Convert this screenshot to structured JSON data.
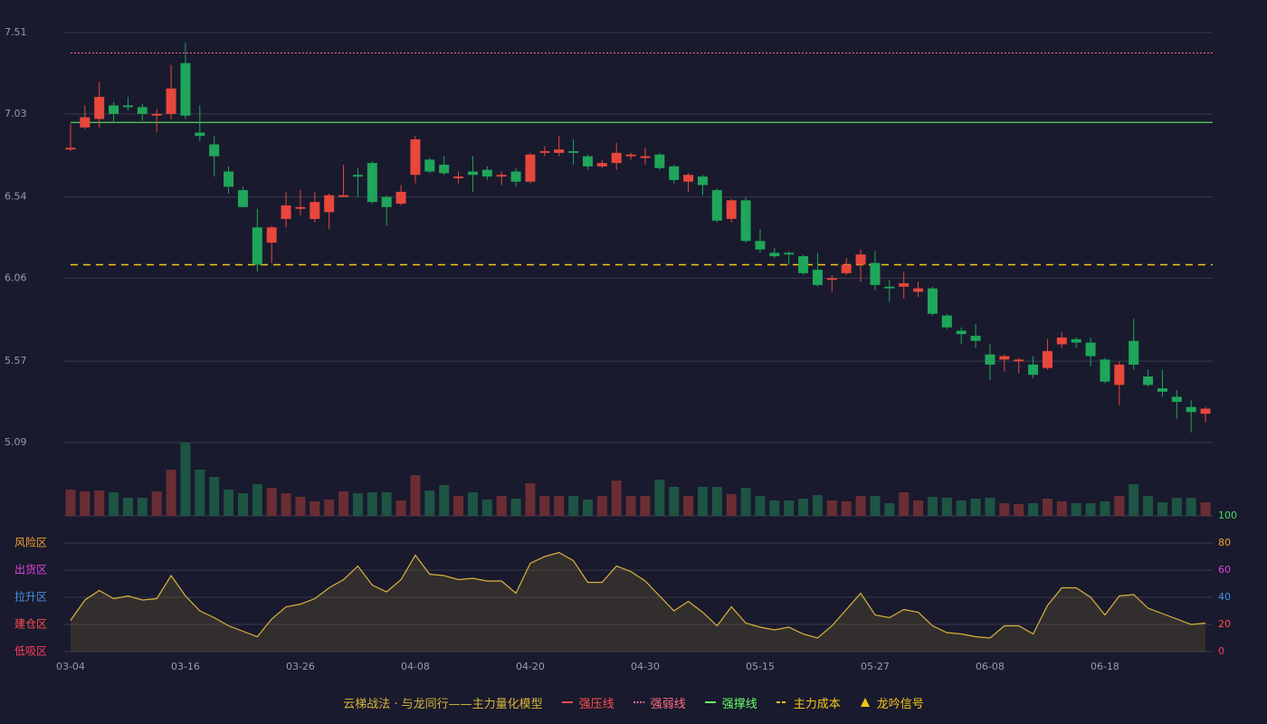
{
  "chart_data": {
    "type": "candlestick",
    "categories": [
      "03-04",
      null,
      null,
      null,
      null,
      null,
      null,
      null,
      "03-16",
      null,
      null,
      null,
      null,
      null,
      null,
      null,
      "03-26",
      null,
      null,
      null,
      null,
      null,
      null,
      null,
      "04-08",
      null,
      null,
      null,
      null,
      null,
      null,
      null,
      "04-20",
      null,
      null,
      null,
      null,
      null,
      null,
      null,
      "04-30",
      null,
      null,
      null,
      null,
      null,
      null,
      null,
      "05-15",
      null,
      null,
      null,
      null,
      null,
      null,
      null,
      "05-27",
      null,
      null,
      null,
      null,
      null,
      null,
      null,
      "06-08",
      null,
      null,
      null,
      null,
      null,
      null,
      null,
      "06-18",
      null,
      null,
      null,
      null,
      null,
      null,
      null
    ],
    "open": [
      6.82,
      6.95,
      7.0,
      7.08,
      7.08,
      7.07,
      7.02,
      7.03,
      7.33,
      6.92,
      6.85,
      6.69,
      6.58,
      6.36,
      6.27,
      6.41,
      6.47,
      6.41,
      6.45,
      6.54,
      6.67,
      6.74,
      6.54,
      6.5,
      6.67,
      6.76,
      6.73,
      6.65,
      6.69,
      6.7,
      6.66,
      6.69,
      6.63,
      6.8,
      6.8,
      6.81,
      6.78,
      6.72,
      6.74,
      6.78,
      6.77,
      6.79,
      6.72,
      6.63,
      6.66,
      6.58,
      6.41,
      6.52,
      6.28,
      6.21,
      6.21,
      6.19,
      6.11,
      6.05,
      6.09,
      6.14,
      6.15,
      6.01,
      6.01,
      5.98,
      6.0,
      5.84,
      5.75,
      5.72,
      5.61,
      5.58,
      5.57,
      5.55,
      5.53,
      5.67,
      5.7,
      5.68,
      5.58,
      5.43,
      5.69,
      5.48,
      5.41,
      5.36,
      5.3,
      5.26
    ],
    "high": [
      6.97,
      7.08,
      7.22,
      7.1,
      7.13,
      7.09,
      7.06,
      7.32,
      7.45,
      7.08,
      6.9,
      6.72,
      6.6,
      6.47,
      6.37,
      6.57,
      6.58,
      6.57,
      6.56,
      6.73,
      6.71,
      6.75,
      6.55,
      6.61,
      6.9,
      6.77,
      6.78,
      6.69,
      6.78,
      6.72,
      6.69,
      6.71,
      6.8,
      6.84,
      6.9,
      6.88,
      6.79,
      6.76,
      6.86,
      6.8,
      6.83,
      6.8,
      6.73,
      6.68,
      6.67,
      6.59,
      6.53,
      6.54,
      6.35,
      6.24,
      6.22,
      6.2,
      6.21,
      6.08,
      6.18,
      6.23,
      6.22,
      6.05,
      6.1,
      6.04,
      6.01,
      5.85,
      5.77,
      5.79,
      5.67,
      5.61,
      5.59,
      5.6,
      5.7,
      5.74,
      5.71,
      5.71,
      5.59,
      5.57,
      5.82,
      5.52,
      5.52,
      5.4,
      5.34,
      5.3
    ],
    "low": [
      6.81,
      6.94,
      6.95,
      6.98,
      7.05,
      6.99,
      6.92,
      7.0,
      7.0,
      6.87,
      6.66,
      6.56,
      6.48,
      6.1,
      6.15,
      6.36,
      6.43,
      6.39,
      6.35,
      6.54,
      6.54,
      6.5,
      6.37,
      6.49,
      6.62,
      6.68,
      6.67,
      6.62,
      6.57,
      6.64,
      6.61,
      6.6,
      6.62,
      6.78,
      6.78,
      6.73,
      6.7,
      6.71,
      6.7,
      6.76,
      6.73,
      6.7,
      6.62,
      6.57,
      6.55,
      6.39,
      6.39,
      6.27,
      6.21,
      6.18,
      6.14,
      6.08,
      6.01,
      5.98,
      6.08,
      6.04,
      5.99,
      5.92,
      5.94,
      5.95,
      5.84,
      5.76,
      5.67,
      5.65,
      5.46,
      5.51,
      5.5,
      5.47,
      5.52,
      5.65,
      5.65,
      5.54,
      5.44,
      5.31,
      5.52,
      5.42,
      5.36,
      5.23,
      5.15,
      5.21
    ],
    "close": [
      6.83,
      7.01,
      7.13,
      7.03,
      7.07,
      7.03,
      7.03,
      7.18,
      7.02,
      6.9,
      6.78,
      6.6,
      6.48,
      6.14,
      6.36,
      6.49,
      6.48,
      6.51,
      6.55,
      6.55,
      6.66,
      6.51,
      6.48,
      6.57,
      6.88,
      6.69,
      6.68,
      6.66,
      6.67,
      6.66,
      6.67,
      6.63,
      6.79,
      6.81,
      6.82,
      6.8,
      6.72,
      6.74,
      6.8,
      6.79,
      6.78,
      6.71,
      6.64,
      6.67,
      6.61,
      6.4,
      6.52,
      6.28,
      6.23,
      6.19,
      6.2,
      6.09,
      6.02,
      6.06,
      6.14,
      6.2,
      6.02,
      6.0,
      6.03,
      6.0,
      5.85,
      5.77,
      5.73,
      5.69,
      5.55,
      5.6,
      5.58,
      5.49,
      5.63,
      5.71,
      5.68,
      5.6,
      5.45,
      5.55,
      5.55,
      5.43,
      5.39,
      5.33,
      5.27,
      5.29
    ],
    "volume": [
      29,
      27,
      28,
      26,
      20,
      20,
      27,
      51,
      81,
      51,
      43,
      29,
      25,
      35,
      31,
      25,
      21,
      16,
      18,
      27,
      25,
      26,
      26,
      17,
      45,
      28,
      34,
      22,
      26,
      18,
      22,
      19,
      36,
      22,
      22,
      22,
      18,
      22,
      39,
      22,
      22,
      40,
      32,
      22,
      32,
      32,
      24,
      31,
      22,
      17,
      17,
      19,
      23,
      17,
      16,
      22,
      22,
      14,
      26,
      17,
      21,
      20,
      17,
      19,
      20,
      14,
      13,
      14,
      19,
      16,
      14,
      14,
      16,
      22,
      35,
      22,
      15,
      20,
      20,
      15
    ],
    "up_color": "#e8473c",
    "down_color": "#1fa65a",
    "up_volume_color": "#6a2d34",
    "down_volume_color": "#1e5444",
    "ylim": [
      5.09,
      7.51
    ],
    "yticks": [
      7.51,
      7.03,
      6.54,
      6.06,
      5.57,
      5.09
    ],
    "grid": true,
    "lines": [
      {
        "name": "强压线",
        "color": "#ff4d4d",
        "style": "solid"
      },
      {
        "name": "强弱线",
        "color": "#ff6b81",
        "style": "dotted",
        "value": 7.39
      },
      {
        "name": "强撑线",
        "color": "#66ff66",
        "style": "solid",
        "value": 6.98
      },
      {
        "name": "主力成本",
        "color": "#f5c518",
        "style": "dashed",
        "value": 6.14
      }
    ],
    "oscillator": {
      "name": "云梯战法 · 与龙同行——主力量化模型",
      "color": "#d8b33a",
      "fill": "rgba(120,100,50,0.28)",
      "values": [
        23,
        38,
        45,
        39,
        41,
        38,
        39,
        56,
        41,
        30,
        25,
        19,
        15,
        11,
        24,
        33,
        35,
        39,
        47,
        53,
        63,
        49,
        44,
        53,
        71,
        57,
        56,
        53,
        54,
        52,
        52,
        43,
        65,
        70,
        73,
        67,
        51,
        51,
        63,
        59,
        52,
        41,
        30,
        37,
        29,
        19,
        33,
        21,
        18,
        16,
        18,
        13,
        10,
        19,
        31,
        43,
        27,
        25,
        31,
        29,
        19,
        14,
        13,
        11,
        10,
        19,
        19,
        13,
        34,
        47,
        47,
        40,
        27,
        41,
        42,
        32,
        28,
        24,
        20,
        21
      ],
      "ylim": [
        0,
        100
      ],
      "yticks": [
        100,
        80,
        60,
        40,
        20,
        0
      ],
      "ytick_colors": [
        "#4cd964",
        "#f0a030",
        "#e040e0",
        "#4a90e2",
        "#ff4d4d",
        "#ff3b5c"
      ],
      "zones": [
        {
          "label": "风险区",
          "color": "#f0a030"
        },
        {
          "label": "出货区",
          "color": "#e040e0"
        },
        {
          "label": "拉升区",
          "color": "#4a90e2"
        },
        {
          "label": "建仓区",
          "color": "#ff4d4d"
        },
        {
          "label": "低吸区",
          "color": "#ff3b5c"
        }
      ]
    },
    "signal": {
      "name": "龙吟信号",
      "color": "#f5c518"
    }
  }
}
